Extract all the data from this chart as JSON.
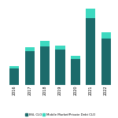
{
  "years": [
    "2016",
    "2017",
    "2018",
    "2019",
    "2020",
    "2021",
    "2022"
  ],
  "bsl_clo": [
    32,
    65,
    75,
    68,
    50,
    130,
    90
  ],
  "mm_clo": [
    5,
    8,
    10,
    8,
    7,
    18,
    12
  ],
  "bsl_color": "#1c6b6b",
  "mm_color": "#3dd9c0",
  "background_color": "#ffffff",
  "grid_color": "#d0d0d0",
  "legend_bsl": "BSL CLO",
  "legend_mm": "Middle Market/Private Debt CLO"
}
